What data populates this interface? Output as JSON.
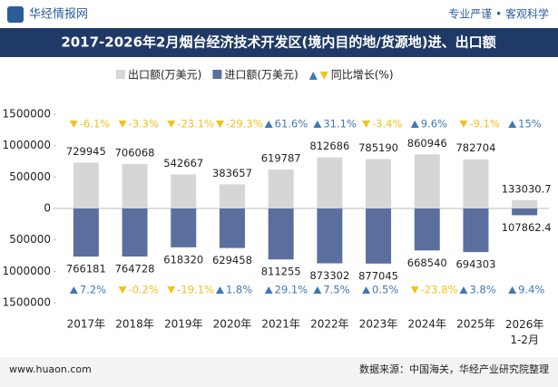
{
  "header": {
    "brand": "华经情报网",
    "slogan": "专业严谨 • 客观科学"
  },
  "chart_data": {
    "type": "bar",
    "title": "2017-2026年2月烟台经济技术开发区(境内目的地/货源地)进、出口额",
    "categories": [
      "2017年",
      "2018年",
      "2019年",
      "2020年",
      "2021年",
      "2022年",
      "2023年",
      "2024年",
      "2025年",
      "2026年\n1-2月"
    ],
    "series": [
      {
        "name": "出口额(万美元)",
        "color": "#d6d6d6",
        "values": [
          729945,
          706068,
          542667,
          383657,
          619787,
          812686,
          785190,
          860946,
          782704,
          133030.7
        ]
      },
      {
        "name": "进口额(万美元)",
        "color": "#5b6f9e",
        "values": [
          -766181,
          -764728,
          -618320,
          -629458,
          -811255,
          -873302,
          -877045,
          -668540,
          -694303,
          -107862.4
        ],
        "value_labels": [
          "766181",
          "764728",
          "618320",
          "629458",
          "811255",
          "873302",
          "877045",
          "668540",
          "694303",
          "107862.4"
        ]
      }
    ],
    "growth_name": "同比增长(%)",
    "up_color": "#3f78b5",
    "down_color": "#f2c21b",
    "growth": [
      {
        "values": [
          -6.1,
          -3.3,
          -23.1,
          -29.3,
          61.6,
          31.1,
          -3.4,
          9.6,
          -9.1,
          15
        ],
        "value_labels": [
          "-6.1%",
          "-3.3%",
          "-23.1%",
          "-29.3%",
          "61.6%",
          "31.1%",
          "-3.4%",
          "9.6%",
          "-9.1%",
          "15%"
        ]
      },
      {
        "values": [
          7.2,
          -0.2,
          -19.1,
          1.8,
          29.1,
          7.5,
          0.5,
          -23.8,
          3.8,
          9.4
        ],
        "value_labels": [
          "7.2%",
          "-0.2%",
          "-19.1%",
          "1.8%",
          "29.1%",
          "7.5%",
          "0.5%",
          "-23.8%",
          "3.8%",
          "9.4%"
        ]
      }
    ],
    "ylim": [
      -1500000,
      1500000
    ],
    "yticks": [
      1500000,
      1000000,
      500000,
      0,
      {
        "value": -500000,
        "label": "500000"
      },
      {
        "value": -1000000,
        "label": "1000000"
      },
      {
        "value": -1500000,
        "label": "1500000"
      }
    ],
    "grid": false
  },
  "footer": {
    "site": "www.huaon.com",
    "source": "数据来源：中国海关，华经产业研究院整理"
  }
}
